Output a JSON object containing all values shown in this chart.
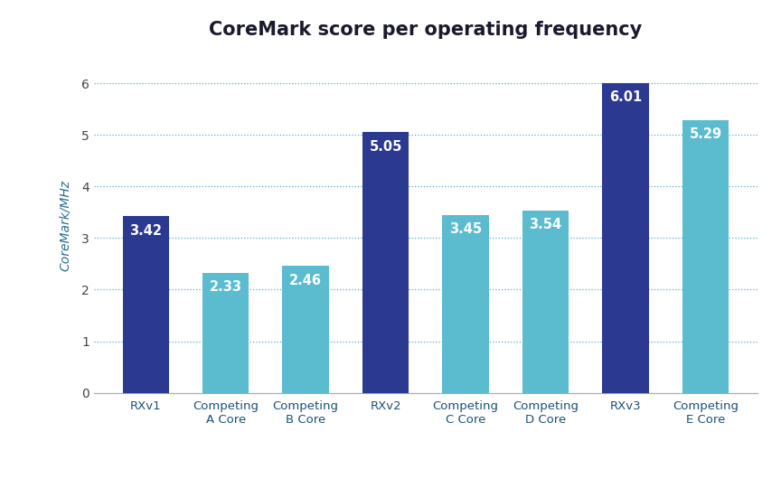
{
  "title": "CoreMark score per operating frequency",
  "ylabel": "CoreMark/MHz",
  "categories": [
    "RXv1",
    "Competing\nA Core",
    "Competing\nB Core",
    "RXv2",
    "Competing\nC Core",
    "Competing\nD Core",
    "RXv3",
    "Competing\nE Core"
  ],
  "values": [
    3.42,
    2.33,
    2.46,
    5.05,
    3.45,
    3.54,
    6.01,
    5.29
  ],
  "colors": [
    "#2b3990",
    "#5bbcd0",
    "#5bbcd0",
    "#2b3990",
    "#5bbcd0",
    "#5bbcd0",
    "#2b3990",
    "#5bbcd0"
  ],
  "ylim": [
    0,
    6.5
  ],
  "yticks": [
    0,
    1,
    2,
    3,
    4,
    5,
    6
  ],
  "bar_width": 0.58,
  "title_fontsize": 15,
  "label_fontsize": 9.5,
  "tick_fontsize": 10,
  "value_fontsize": 10.5,
  "ylabel_fontsize": 10,
  "background_color": "#ffffff",
  "grid_color": "#5ba8cc",
  "axis_color": "#aaaaaa",
  "text_color": "#1a1a2e",
  "ylabel_color": "#2a6e8c",
  "xtick_color": "#1a5276"
}
